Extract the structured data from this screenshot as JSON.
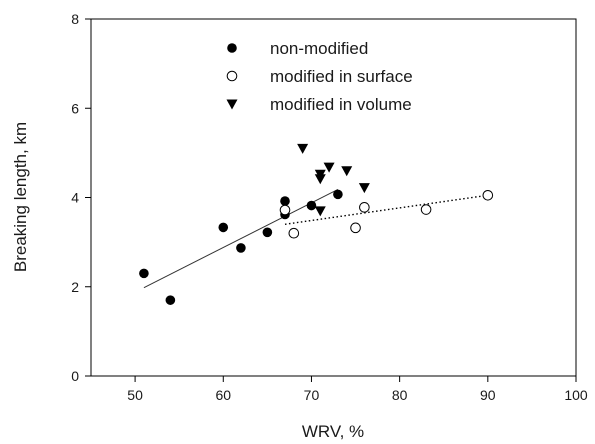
{
  "chart_data": {
    "type": "scatter",
    "title": "",
    "xlabel": "WRV, %",
    "ylabel": "Breaking length, km",
    "xlim": [
      45,
      100
    ],
    "ylim": [
      0,
      8
    ],
    "xticks": [
      50,
      60,
      70,
      80,
      90,
      100
    ],
    "yticks": [
      0,
      2,
      4,
      6,
      8
    ],
    "grid": false,
    "legend_position": "top-center",
    "series": [
      {
        "name": "non-modified",
        "marker": "filled-circle",
        "color": "#000000",
        "points": [
          [
            51,
            2.3
          ],
          [
            54,
            1.7
          ],
          [
            60,
            3.33
          ],
          [
            62,
            2.87
          ],
          [
            65,
            3.22
          ],
          [
            67,
            3.92
          ],
          [
            67,
            3.62
          ],
          [
            70,
            3.82
          ],
          [
            73,
            4.07
          ]
        ]
      },
      {
        "name": "modified in surface",
        "marker": "open-circle",
        "color": "#000000",
        "points": [
          [
            67,
            3.72
          ],
          [
            68,
            3.2
          ],
          [
            75,
            3.32
          ],
          [
            76,
            3.78
          ],
          [
            83,
            3.73
          ],
          [
            90,
            4.05
          ]
        ]
      },
      {
        "name": "modified in volume",
        "marker": "filled-triangle-down",
        "color": "#000000",
        "points": [
          [
            69,
            5.1
          ],
          [
            71,
            4.52
          ],
          [
            71,
            4.42
          ],
          [
            71,
            3.7
          ],
          [
            72,
            4.68
          ],
          [
            74,
            4.6
          ],
          [
            76,
            4.22
          ]
        ]
      }
    ],
    "trendlines": [
      {
        "series": "non-modified",
        "style": "solid",
        "from": [
          51,
          1.98
        ],
        "to": [
          73,
          4.18
        ]
      },
      {
        "series": "modified in surface",
        "style": "dotted",
        "from": [
          67,
          3.4
        ],
        "to": [
          90,
          4.05
        ]
      }
    ]
  }
}
